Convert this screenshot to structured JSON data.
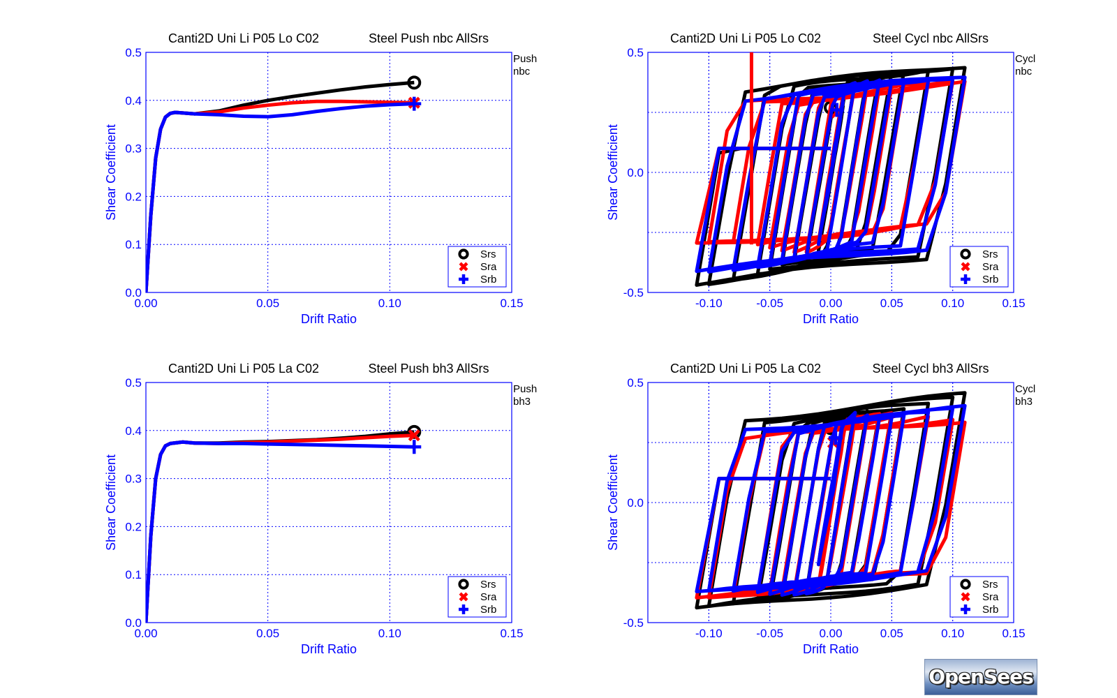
{
  "chart_data": [
    {
      "type": "line",
      "title": "Canti2D Uni Li P05 Lo C02",
      "subtitle": "Steel Push nbc AllSrs",
      "side_label": [
        "Push",
        "nbc"
      ],
      "xlabel": "Drift Ratio",
      "ylabel": "Shear Coefficient",
      "xlim": [
        0,
        0.15
      ],
      "ylim": [
        0,
        0.5
      ],
      "xticks": [
        "0.00",
        "0.05",
        "0.10",
        "0.15"
      ],
      "yticks": [
        "0.0",
        "0.1",
        "0.2",
        "0.3",
        "0.4",
        "0.5"
      ],
      "grid": true,
      "legend_position": "bottom-right",
      "series": [
        {
          "name": "Srs",
          "color": "#000000",
          "marker": "circle",
          "x": [
            0,
            0.002,
            0.004,
            0.006,
            0.008,
            0.01,
            0.012,
            0.02,
            0.03,
            0.04,
            0.05,
            0.06,
            0.07,
            0.08,
            0.09,
            0.1,
            0.11
          ],
          "y": [
            0,
            0.16,
            0.28,
            0.34,
            0.365,
            0.373,
            0.375,
            0.372,
            0.378,
            0.39,
            0.4,
            0.408,
            0.415,
            0.422,
            0.428,
            0.433,
            0.437
          ]
        },
        {
          "name": "Sra",
          "color": "#ff0000",
          "marker": "x",
          "x": [
            0,
            0.002,
            0.004,
            0.006,
            0.008,
            0.01,
            0.012,
            0.02,
            0.03,
            0.04,
            0.05,
            0.06,
            0.07,
            0.08,
            0.09,
            0.1,
            0.11
          ],
          "y": [
            0,
            0.16,
            0.28,
            0.34,
            0.365,
            0.373,
            0.375,
            0.372,
            0.376,
            0.384,
            0.39,
            0.395,
            0.398,
            0.398,
            0.397,
            0.396,
            0.395
          ]
        },
        {
          "name": "Srb",
          "color": "#0000ff",
          "marker": "plus",
          "x": [
            0,
            0.002,
            0.004,
            0.006,
            0.008,
            0.01,
            0.012,
            0.02,
            0.03,
            0.04,
            0.05,
            0.06,
            0.07,
            0.08,
            0.09,
            0.1,
            0.11
          ],
          "y": [
            0,
            0.16,
            0.28,
            0.34,
            0.365,
            0.373,
            0.375,
            0.372,
            0.37,
            0.367,
            0.366,
            0.37,
            0.377,
            0.383,
            0.388,
            0.391,
            0.393
          ]
        }
      ]
    },
    {
      "type": "line",
      "title": "Canti2D Uni Li P05 Lo C02",
      "subtitle": "Steel Cycl nbc AllSrs",
      "side_label": [
        "Cycl",
        "nbc"
      ],
      "xlabel": "Drift Ratio",
      "ylabel": "Shear Coefficient",
      "xlim": [
        -0.15,
        0.15
      ],
      "ylim": [
        -0.5,
        0.5
      ],
      "xticks": [
        "-0.10",
        "-0.05",
        "0.00",
        "0.05",
        "0.10",
        "0.15"
      ],
      "yticks": [
        "-0.5",
        "0.0",
        "0.5"
      ],
      "grid": true,
      "legend_position": "bottom-right",
      "cycle_amplitudes": [
        0.005,
        0.01,
        0.02,
        0.03,
        0.04,
        0.05,
        0.06,
        0.08,
        0.1,
        0.11
      ],
      "series": [
        {
          "name": "Srs",
          "color": "#000000",
          "marker": "circle",
          "peak_positive": 0.44,
          "peak_negative": -0.45,
          "marker_point": [
            0,
            0.27
          ]
        },
        {
          "name": "Sra",
          "color": "#ff0000",
          "marker": "x",
          "peak_positive": 0.38,
          "peak_negative": -0.31,
          "marker_point": [
            0.005,
            0.25
          ]
        },
        {
          "name": "Srb",
          "color": "#0000ff",
          "marker": "plus",
          "peak_positive": 0.39,
          "peak_negative": -0.4,
          "marker_point": [
            0.005,
            0.26
          ]
        }
      ]
    },
    {
      "type": "line",
      "title": "Canti2D Uni Li P05 La C02",
      "subtitle": "Steel Push bh3 AllSrs",
      "side_label": [
        "Push",
        "bh3"
      ],
      "xlabel": "Drift Ratio",
      "ylabel": "Shear Coefficient",
      "xlim": [
        0,
        0.15
      ],
      "ylim": [
        0,
        0.5
      ],
      "xticks": [
        "0.00",
        "0.05",
        "0.10",
        "0.15"
      ],
      "yticks": [
        "0.0",
        "0.1",
        "0.2",
        "0.3",
        "0.4",
        "0.5"
      ],
      "grid": true,
      "legend_position": "bottom-right",
      "series": [
        {
          "name": "Srs",
          "color": "#000000",
          "marker": "circle",
          "x": [
            0,
            0.002,
            0.004,
            0.006,
            0.008,
            0.01,
            0.015,
            0.02,
            0.03,
            0.04,
            0.05,
            0.06,
            0.07,
            0.08,
            0.09,
            0.1,
            0.11
          ],
          "y": [
            0,
            0.18,
            0.3,
            0.35,
            0.368,
            0.373,
            0.376,
            0.374,
            0.374,
            0.376,
            0.377,
            0.379,
            0.381,
            0.384,
            0.388,
            0.393,
            0.397
          ]
        },
        {
          "name": "Sra",
          "color": "#ff0000",
          "marker": "x",
          "x": [
            0,
            0.002,
            0.004,
            0.006,
            0.008,
            0.01,
            0.015,
            0.02,
            0.03,
            0.04,
            0.05,
            0.06,
            0.07,
            0.08,
            0.09,
            0.1,
            0.11
          ],
          "y": [
            0,
            0.18,
            0.3,
            0.35,
            0.368,
            0.373,
            0.376,
            0.374,
            0.373,
            0.375,
            0.376,
            0.378,
            0.38,
            0.382,
            0.385,
            0.388,
            0.39
          ]
        },
        {
          "name": "Srb",
          "color": "#0000ff",
          "marker": "plus",
          "x": [
            0,
            0.002,
            0.004,
            0.006,
            0.008,
            0.01,
            0.015,
            0.02,
            0.03,
            0.04,
            0.05,
            0.06,
            0.07,
            0.08,
            0.09,
            0.1,
            0.11
          ],
          "y": [
            0,
            0.18,
            0.3,
            0.35,
            0.368,
            0.373,
            0.376,
            0.374,
            0.373,
            0.373,
            0.372,
            0.371,
            0.37,
            0.369,
            0.368,
            0.367,
            0.366
          ]
        }
      ]
    },
    {
      "type": "line",
      "title": "Canti2D Uni Li P05 La C02",
      "subtitle": "Steel Cycl bh3 AllSrs",
      "side_label": [
        "Cycl",
        "bh3"
      ],
      "xlabel": "Drift Ratio",
      "ylabel": "Shear Coefficient",
      "xlim": [
        -0.15,
        0.15
      ],
      "ylim": [
        -0.5,
        0.5
      ],
      "xticks": [
        "-0.10",
        "-0.05",
        "0.00",
        "0.05",
        "0.10",
        "0.15"
      ],
      "yticks": [
        "-0.5",
        "0.0",
        "0.5"
      ],
      "grid": true,
      "legend_position": "bottom-right",
      "cycle_amplitudes": [
        0.005,
        0.01,
        0.02,
        0.03,
        0.04,
        0.05,
        0.06,
        0.08,
        0.1,
        0.11
      ],
      "series": [
        {
          "name": "Srs",
          "color": "#000000",
          "marker": "circle",
          "peak_positive": 0.44,
          "peak_negative": -0.45,
          "marker_point": [
            0,
            0.31
          ]
        },
        {
          "name": "Sra",
          "color": "#ff0000",
          "marker": "x",
          "peak_positive": 0.35,
          "peak_negative": -0.38,
          "marker_point": [
            0.002,
            0.25
          ]
        },
        {
          "name": "Srb",
          "color": "#0000ff",
          "marker": "plus",
          "peak_positive": 0.39,
          "peak_negative": -0.39,
          "marker_point": [
            0.004,
            0.27
          ]
        }
      ]
    }
  ],
  "logo": {
    "text": "OpenSees"
  }
}
